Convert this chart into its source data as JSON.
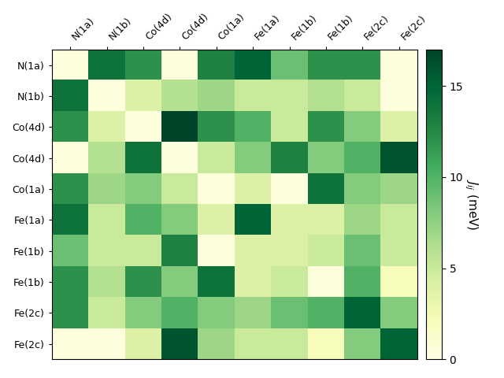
{
  "labels": [
    "N(1a)",
    "N(1b)",
    "Co(4d)",
    "Co(4d)",
    "Co(1a)",
    "Fe(1a)",
    "Fe(1b)",
    "Fe(1b)",
    "Fe(2c)",
    "Fe(2c)"
  ],
  "matrix": [
    [
      0.5,
      14,
      12,
      0.5,
      13,
      15,
      9,
      12,
      12,
      0.5
    ],
    [
      14,
      0.5,
      4,
      6,
      7,
      5,
      5,
      6,
      5,
      0.5
    ],
    [
      12,
      4,
      0.5,
      17,
      12,
      10,
      5,
      12,
      8,
      4
    ],
    [
      0.5,
      6,
      14,
      0.5,
      5,
      8,
      13,
      8,
      10,
      16
    ],
    [
      12,
      7,
      8,
      5,
      0.5,
      4,
      0.5,
      14,
      8,
      7
    ],
    [
      14,
      5,
      10,
      8,
      4,
      15,
      4,
      4,
      7,
      5
    ],
    [
      9,
      5,
      5,
      13,
      0.5,
      4,
      4,
      5,
      9,
      5
    ],
    [
      12,
      6,
      12,
      8,
      14,
      4,
      5,
      0.5,
      10,
      2
    ],
    [
      12,
      5,
      8,
      10,
      8,
      7,
      9,
      10,
      15,
      8
    ],
    [
      0.5,
      0.5,
      4,
      16,
      7,
      5,
      5,
      2,
      8,
      15
    ]
  ],
  "vmin": 0,
  "vmax": 17,
  "colorbar_label": "$J_{ij}$ (meV)",
  "colormap": "YlGn"
}
